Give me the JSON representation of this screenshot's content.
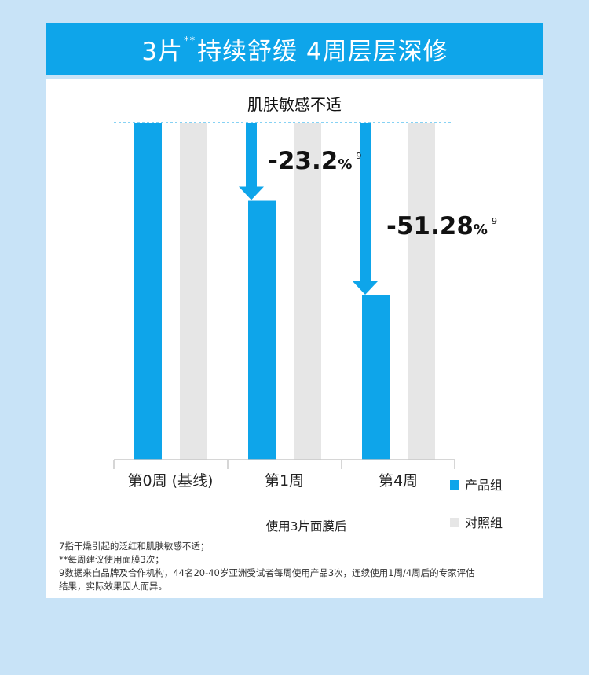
{
  "title": {
    "main": "3片",
    "sup": "**",
    "rest": " 持续舒缓 4周层层深修"
  },
  "chart_data": {
    "type": "bar",
    "title": "肌肤敏感不适",
    "xlabel": "使用3片面膜后",
    "categories": [
      "第0周 (基线)",
      "第1周",
      "第4周"
    ],
    "series": [
      {
        "name": "产品组",
        "values": [
          100,
          76.8,
          48.72
        ],
        "color": "#0ea5ea"
      },
      {
        "name": "对照组",
        "values": [
          100,
          100,
          100
        ],
        "color": "#e6e6e6"
      }
    ],
    "changes": [
      {
        "category": "第1周",
        "text": "-23.2",
        "unit": "%",
        "note": "9"
      },
      {
        "category": "第4周",
        "text": "-51.28",
        "unit": "%",
        "note": "9"
      }
    ],
    "ylim": [
      0,
      100
    ],
    "legend_position": "right"
  },
  "footnotes": {
    "line1": "7指干燥引起的泛红和肌肤敏感不适；",
    "line2": "**每周建议使用面膜3次；",
    "line3": "9数据来自品牌及合作机构，44名20-40岁亚洲受试者每周使用产品3次，连续使用1周/4周后的专家评估",
    "line4": "结果，实际效果因人而异。"
  }
}
